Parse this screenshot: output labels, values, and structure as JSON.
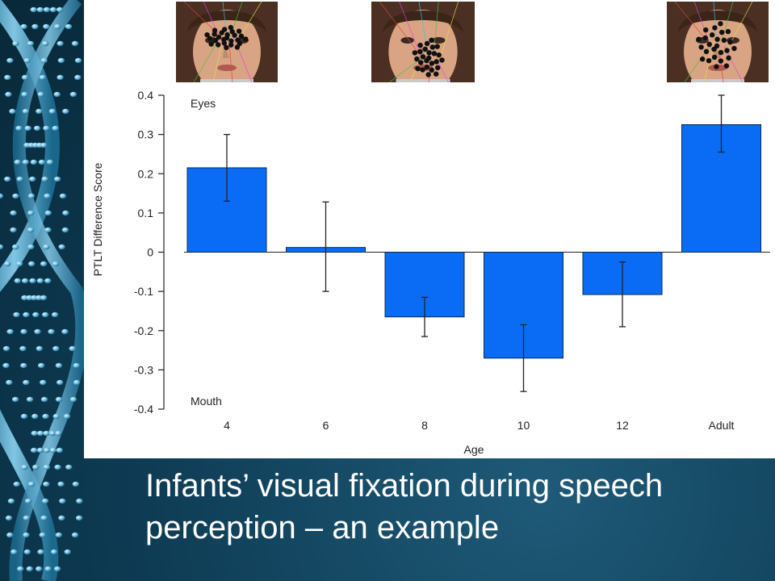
{
  "caption": {
    "line1": "Infants’ visual fixation during speech",
    "line2": "perception – an example"
  },
  "faces": [
    {
      "name": "face-image-4-months",
      "category": "4"
    },
    {
      "name": "face-image-8-months",
      "category": "8"
    },
    {
      "name": "face-image-adult",
      "category": "Adult"
    }
  ],
  "colors": {
    "bar": "#0a6cf4",
    "background_dark": "#0d3a52",
    "caption_text": "#ffffff"
  },
  "chart_data": {
    "type": "bar",
    "categories": [
      "4",
      "6",
      "8",
      "10",
      "12",
      "Adult"
    ],
    "values": [
      0.215,
      0.012,
      -0.165,
      -0.27,
      -0.108,
      0.325
    ],
    "error_low": [
      0.13,
      -0.1,
      -0.215,
      -0.355,
      -0.19,
      0.255
    ],
    "error_high": [
      0.3,
      0.128,
      -0.115,
      -0.185,
      -0.025,
      0.4
    ],
    "xlabel": "Age",
    "ylabel": "PTLT Difference Score",
    "ylim": [
      -0.4,
      0.4
    ],
    "yticks": [
      0.4,
      0.3,
      0.2,
      0.1,
      0,
      -0.1,
      -0.2,
      -0.3,
      -0.4
    ],
    "ytick_labels": [
      "0.4",
      "0.3",
      "0.2",
      "0.1",
      "0",
      "-0.1",
      "-0.2",
      "-0.3",
      "-0.4"
    ],
    "annotations": {
      "top": "Eyes",
      "bottom": "Mouth"
    },
    "grid": false,
    "legend": "none"
  }
}
